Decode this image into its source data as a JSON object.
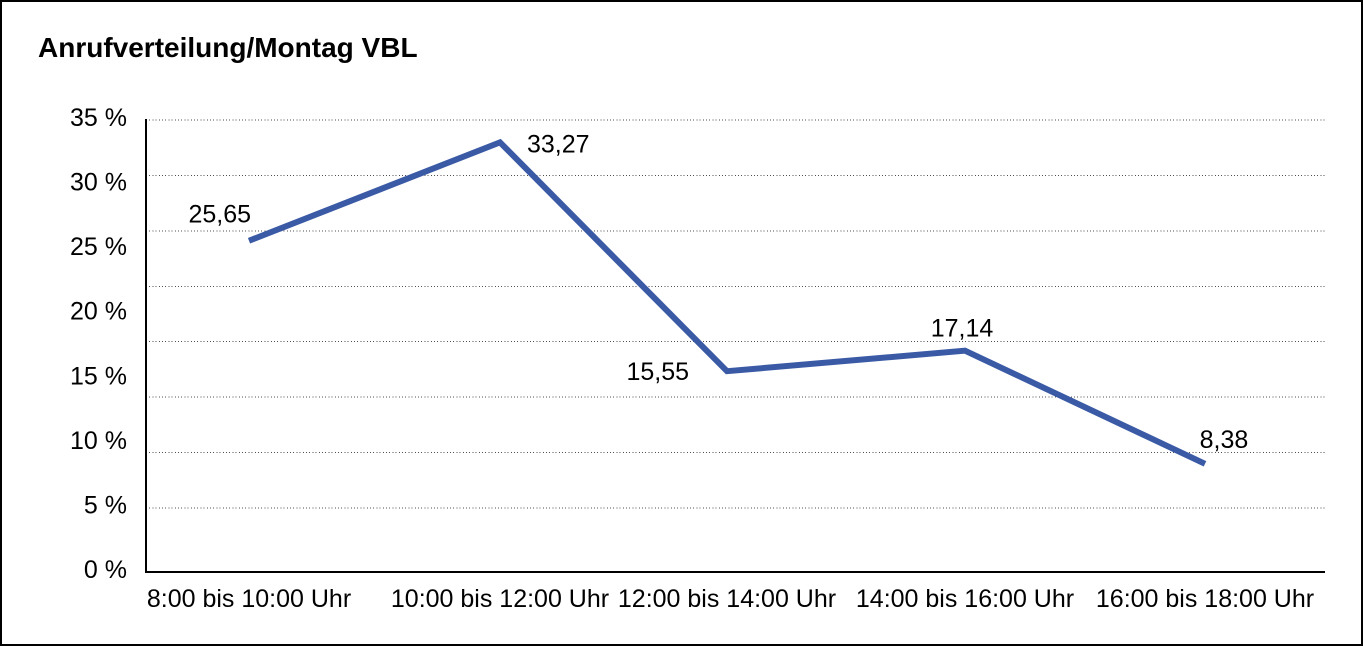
{
  "chart_data": {
    "type": "line",
    "title": "Anrufverteilung/Montag VBL",
    "categories": [
      "8:00 bis 10:00 Uhr",
      "10:00 bis 12:00 Uhr",
      "12:00 bis 14:00 Uhr",
      "14:00 bis 16:00 Uhr",
      "16:00 bis 18:00 Uhr"
    ],
    "values": [
      25.65,
      33.27,
      15.55,
      17.14,
      8.38
    ],
    "point_labels": [
      "25,65",
      "33,27",
      "15,55",
      "17,14",
      "8,38"
    ],
    "y_tick_labels": [
      "0 %",
      "5 %",
      "10 %",
      "15 %",
      "20 %",
      "25 %",
      "30 %",
      "35 %"
    ],
    "y_tick_step": 5,
    "ylim": [
      0,
      35
    ],
    "xlabel": "",
    "ylabel": "",
    "grid": "horizontal-dotted",
    "legend": "none",
    "colors": {
      "line": "#3B5AA6",
      "grid_dots": "#4d4d4d",
      "axis": "#000000",
      "text": "#000000",
      "background": "#ffffff",
      "frame_border": "#000000"
    }
  }
}
